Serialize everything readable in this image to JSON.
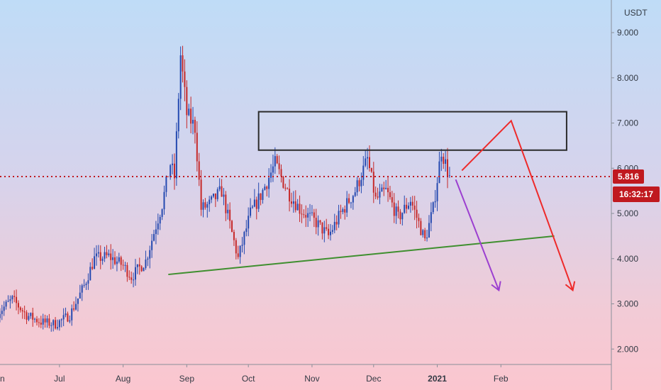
{
  "chart_data": {
    "type": "candlestick",
    "currency": "USDT",
    "x_ticks": [
      "Jun",
      "Jul",
      "Aug",
      "Sep",
      "Oct",
      "Nov",
      "Dec",
      "2021",
      "Feb"
    ],
    "y_ticks": [
      "9.000",
      "8.000",
      "7.000",
      "6.000",
      "5.000",
      "4.000",
      "3.000",
      "2.000"
    ],
    "y_range": [
      1.5,
      9.5
    ],
    "last_price": "5.816",
    "countdown": "16:32:17",
    "colors": {
      "up": "#2449b0",
      "down": "#c62828",
      "trendline": "#3f8f2f",
      "projection_red": "#ee2a2a",
      "projection_purple": "#9c3fd0",
      "box": "#2b2b2b",
      "price_line": "#c0191f"
    },
    "price_path": [
      [
        "2020-06-01",
        2.8
      ],
      [
        "2020-06-08",
        3.1
      ],
      [
        "2020-06-15",
        2.75
      ],
      [
        "2020-06-22",
        2.6
      ],
      [
        "2020-06-29",
        2.55
      ],
      [
        "2020-07-06",
        2.75
      ],
      [
        "2020-07-13",
        3.4
      ],
      [
        "2020-07-18",
        4.0
      ],
      [
        "2020-07-25",
        4.05
      ],
      [
        "2020-08-01",
        3.85
      ],
      [
        "2020-08-05",
        3.6
      ],
      [
        "2020-08-12",
        3.95
      ],
      [
        "2020-08-20",
        5.2
      ],
      [
        "2020-08-24",
        6.1
      ],
      [
        "2020-08-26",
        5.8
      ],
      [
        "2020-08-29",
        8.5
      ],
      [
        "2020-09-01",
        7.2
      ],
      [
        "2020-09-05",
        6.9
      ],
      [
        "2020-09-08",
        5.1
      ],
      [
        "2020-09-12",
        5.2
      ],
      [
        "2020-09-18",
        5.5
      ],
      [
        "2020-09-26",
        4.0
      ],
      [
        "2020-10-02",
        5.0
      ],
      [
        "2020-10-07",
        5.4
      ],
      [
        "2020-10-14",
        6.1
      ],
      [
        "2020-10-20",
        5.5
      ],
      [
        "2020-10-26",
        5.1
      ],
      [
        "2020-11-03",
        4.8
      ],
      [
        "2020-11-09",
        4.5
      ],
      [
        "2020-11-15",
        5.0
      ],
      [
        "2020-11-22",
        5.5
      ],
      [
        "2020-11-28",
        6.2
      ],
      [
        "2020-12-02",
        5.3
      ],
      [
        "2020-12-07",
        5.5
      ],
      [
        "2020-12-13",
        4.9
      ],
      [
        "2020-12-19",
        5.3
      ],
      [
        "2020-12-26",
        4.4
      ],
      [
        "2020-12-30",
        5.1
      ],
      [
        "2021-01-03",
        6.4
      ],
      [
        "2021-01-07",
        5.8
      ]
    ],
    "trendline": {
      "start": [
        "2020-08-23",
        3.65
      ],
      "end": [
        "2021-02-27",
        4.5
      ]
    },
    "resistance_box": {
      "x": [
        "2020-10-06",
        "2021-03-05"
      ],
      "y": [
        6.4,
        7.25
      ]
    },
    "projection_red": [
      [
        "2021-01-13",
        5.95
      ],
      [
        "2021-02-06",
        7.05
      ],
      [
        "2021-03-08",
        3.3
      ]
    ],
    "projection_purple": [
      [
        "2021-01-10",
        5.75
      ],
      [
        "2021-01-31",
        3.3
      ]
    ]
  }
}
